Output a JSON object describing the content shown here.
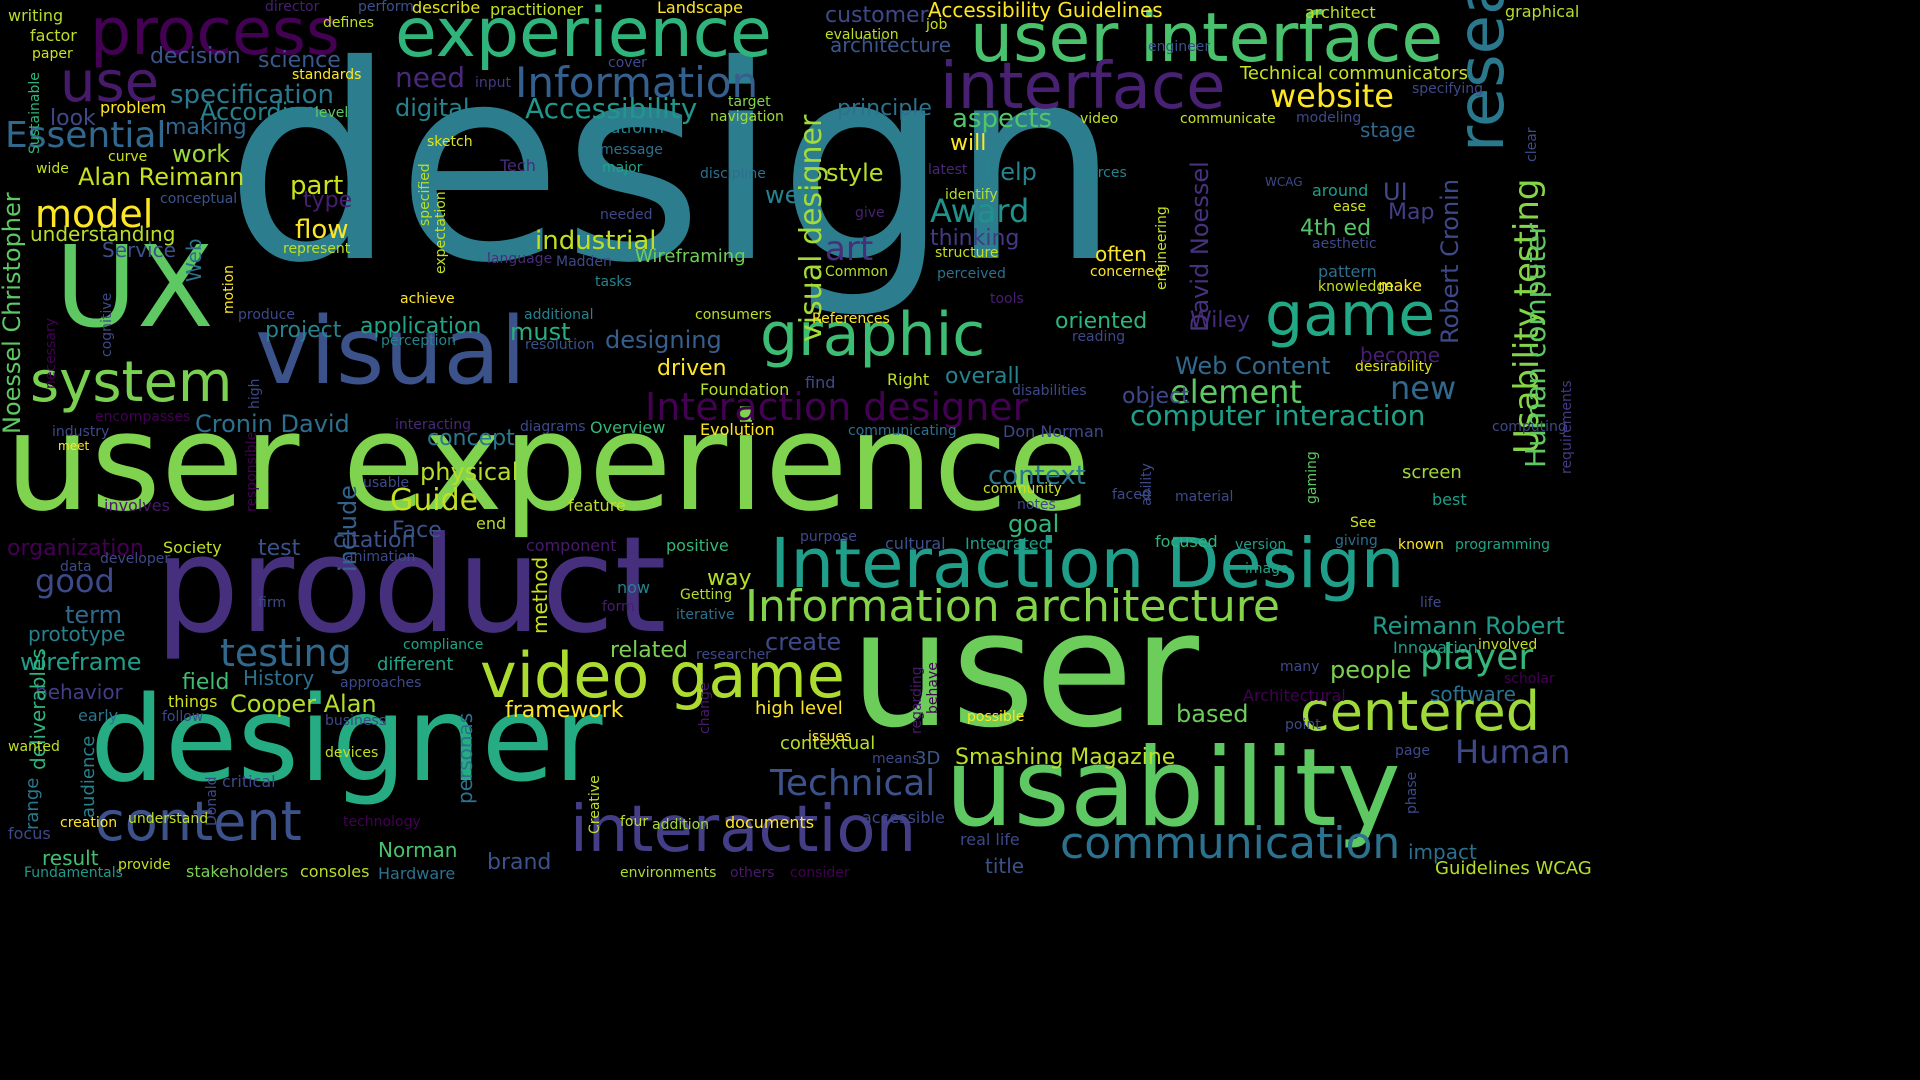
{
  "background": "#000000",
  "words": [
    {
      "text": "design",
      "color": "#2c7e8e"
    },
    {
      "text": "user experience",
      "color": "#7fd34e"
    },
    {
      "text": "user",
      "color": "#6ccd5a"
    },
    {
      "text": "product",
      "color": "#46307e"
    },
    {
      "text": "designer",
      "color": "#25ac82"
    },
    {
      "text": "usability",
      "color": "#5ec962"
    },
    {
      "text": "UX",
      "color": "#5ec962"
    },
    {
      "text": "visual",
      "color": "#3b528b"
    },
    {
      "text": "user interface",
      "color": "#4ac16d"
    },
    {
      "text": "experience",
      "color": "#2fb47c"
    },
    {
      "text": "process",
      "color": "#440154"
    },
    {
      "text": "interface",
      "color": "#482173"
    },
    {
      "text": "Interaction Design",
      "color": "#1f9e89"
    },
    {
      "text": "research",
      "color": "#2a788e"
    },
    {
      "text": "interaction",
      "color": "#433e85"
    },
    {
      "text": "system",
      "color": "#7ad151"
    },
    {
      "text": "graphic",
      "color": "#3dbc74"
    },
    {
      "text": "game",
      "color": "#22a884"
    },
    {
      "text": "video game",
      "color": "#addc30"
    },
    {
      "text": "content",
      "color": "#3b528b"
    },
    {
      "text": "Information architecture",
      "color": "#84d44b"
    },
    {
      "text": "centered",
      "color": "#9fda3a"
    },
    {
      "text": "communication",
      "color": "#2c728e"
    },
    {
      "text": "Information",
      "color": "#355f8d"
    },
    {
      "text": "use",
      "color": "#481a6c"
    },
    {
      "text": "visual designer",
      "color": "#a5db36"
    },
    {
      "text": "Usability testing",
      "color": "#86d549"
    },
    {
      "text": "model",
      "color": "#fde725"
    },
    {
      "text": "Essential",
      "color": "#31688e"
    },
    {
      "text": "testing",
      "color": "#31688e"
    },
    {
      "text": "Interaction designer",
      "color": "#440154"
    },
    {
      "text": "Technical",
      "color": "#3b528b"
    },
    {
      "text": "website",
      "color": "#fde725"
    },
    {
      "text": "Accessibility",
      "color": "#1f988b"
    },
    {
      "text": "Award",
      "color": "#21918c"
    },
    {
      "text": "element",
      "color": "#5ec962"
    },
    {
      "text": "Human",
      "color": "#3e4989"
    },
    {
      "text": "player",
      "color": "#35b779"
    },
    {
      "text": "good",
      "color": "#3e4989"
    },
    {
      "text": "Guide",
      "color": "#c2df23"
    },
    {
      "text": "art",
      "color": "#472d7b"
    },
    {
      "text": "new",
      "color": "#31688e"
    },
    {
      "text": "computer interaction",
      "color": "#1fa187"
    },
    {
      "text": "Human computer",
      "color": "#5ec962"
    },
    {
      "text": "Robert Cronin",
      "color": "#3e4989"
    },
    {
      "text": "David Noessel",
      "color": "#46327e"
    },
    {
      "text": "Noessel Christopher",
      "color": "#5ec962"
    },
    {
      "text": "Cronin David",
      "color": "#2d708e"
    },
    {
      "text": "Alan Reimann",
      "color": "#c8e020"
    },
    {
      "text": "Cooper Alan",
      "color": "#b5de2b"
    },
    {
      "text": "Reimann Robert",
      "color": "#1f9a8a"
    },
    {
      "text": "Smashing Magazine",
      "color": "#bddf26"
    },
    {
      "text": "Web Content",
      "color": "#31688e"
    },
    {
      "text": "Accessibility Guidelines",
      "color": "#fde725"
    },
    {
      "text": "Technical communicators",
      "color": "#cae11f"
    },
    {
      "text": "Guidelines WCAG",
      "color": "#b5de2b"
    },
    {
      "text": "specification",
      "color": "#2a788e"
    },
    {
      "text": "According",
      "color": "#26828e"
    },
    {
      "text": "decision",
      "color": "#3b528b"
    },
    {
      "text": "science",
      "color": "#38598c"
    },
    {
      "text": "need",
      "color": "#482878"
    },
    {
      "text": "customer",
      "color": "#3e4989"
    },
    {
      "text": "architecture",
      "color": "#39568c"
    },
    {
      "text": "digital",
      "color": "#26828e"
    },
    {
      "text": "principle",
      "color": "#2c728e"
    },
    {
      "text": "aspects",
      "color": "#52c569"
    },
    {
      "text": "will",
      "color": "#fde725"
    },
    {
      "text": "help",
      "color": "#26828e"
    },
    {
      "text": "style",
      "color": "#b8de29"
    },
    {
      "text": "well",
      "color": "#26828e"
    },
    {
      "text": "thinking",
      "color": "#443a83"
    },
    {
      "text": "oriented",
      "color": "#2fb47c"
    },
    {
      "text": "Wiley",
      "color": "#472c7a"
    },
    {
      "text": "often",
      "color": "#fde725"
    },
    {
      "text": "4th ed",
      "color": "#54c568"
    },
    {
      "text": "UI",
      "color": "#3e4989"
    },
    {
      "text": "Map",
      "color": "#433e85"
    },
    {
      "text": "part",
      "color": "#cde11d"
    },
    {
      "text": "flow",
      "color": "#fde725"
    },
    {
      "text": "type",
      "color": "#481f70"
    },
    {
      "text": "industrial",
      "color": "#c2df23"
    },
    {
      "text": "Wireframing",
      "color": "#6ece58"
    },
    {
      "text": "Web",
      "color": "#2c728e"
    },
    {
      "text": "Service",
      "color": "#3b528b"
    },
    {
      "text": "understanding",
      "color": "#bade28"
    },
    {
      "text": "work",
      "color": "#a0da39"
    },
    {
      "text": "making",
      "color": "#31688e"
    },
    {
      "text": "look",
      "color": "#3e4989"
    },
    {
      "text": "application",
      "color": "#20a386"
    },
    {
      "text": "must",
      "color": "#29af7f"
    },
    {
      "text": "designing",
      "color": "#355f8d"
    },
    {
      "text": "driven",
      "color": "#fde725"
    },
    {
      "text": "project",
      "color": "#26828e"
    },
    {
      "text": "overall",
      "color": "#26828e"
    },
    {
      "text": "object",
      "color": "#3e4989"
    },
    {
      "text": "concept",
      "color": "#2a788e"
    },
    {
      "text": "physical",
      "color": "#b5de2b"
    },
    {
      "text": "context",
      "color": "#2a788e"
    },
    {
      "text": "goal",
      "color": "#32b67a"
    },
    {
      "text": "include",
      "color": "#33628d"
    },
    {
      "text": "citation",
      "color": "#3b528b"
    },
    {
      "text": "Face",
      "color": "#3b528b"
    },
    {
      "text": "test",
      "color": "#3b528b"
    },
    {
      "text": "organization",
      "color": "#440154"
    },
    {
      "text": "prototype",
      "color": "#26828e"
    },
    {
      "text": "term",
      "color": "#31688e"
    },
    {
      "text": "wireframe",
      "color": "#1f9e89"
    },
    {
      "text": "behavior",
      "color": "#433e85"
    },
    {
      "text": "field",
      "color": "#40bd72"
    },
    {
      "text": "History",
      "color": "#2d708e"
    },
    {
      "text": "different",
      "color": "#20a386"
    },
    {
      "text": "related",
      "color": "#7ad151"
    },
    {
      "text": "framework",
      "color": "#fde725"
    },
    {
      "text": "people",
      "color": "#7ad151"
    },
    {
      "text": "based",
      "color": "#6ccd5a"
    },
    {
      "text": "software",
      "color": "#2c728e"
    },
    {
      "text": "create",
      "color": "#3e4989"
    },
    {
      "text": "way",
      "color": "#b5de2b"
    },
    {
      "text": "method",
      "color": "#cae11f"
    },
    {
      "text": "personas",
      "color": "#2c728e"
    },
    {
      "text": "deliverables",
      "color": "#2fb47c"
    },
    {
      "text": "result",
      "color": "#44bf70"
    },
    {
      "text": "brand",
      "color": "#3b528b"
    },
    {
      "text": "title",
      "color": "#3b528b"
    },
    {
      "text": "Norman",
      "color": "#4ac16d"
    },
    {
      "text": "impact",
      "color": "#2d708e"
    },
    {
      "text": "audience",
      "color": "#26828e"
    },
    {
      "text": "range",
      "color": "#2a788e"
    },
    {
      "text": "3D",
      "color": "#38598c"
    },
    {
      "text": "high level",
      "color": "#fde725"
    },
    {
      "text": "contextual",
      "color": "#b5de2b"
    },
    {
      "text": "documents",
      "color": "#fde725"
    },
    {
      "text": "Hardware",
      "color": "#2c728e"
    },
    {
      "text": "consoles",
      "color": "#b8de29"
    },
    {
      "text": "stakeholders",
      "color": "#7ad151"
    },
    {
      "text": "Fundamentals",
      "color": "#1f9a8a"
    },
    {
      "text": "environments",
      "color": "#a8db34"
    },
    {
      "text": "others",
      "color": "#481a6c"
    },
    {
      "text": "consider",
      "color": "#440154"
    },
    {
      "text": "Landscape",
      "color": "#fde725"
    },
    {
      "text": "graphical",
      "color": "#b5de2b"
    },
    {
      "text": "architect",
      "color": "#bddf26"
    },
    {
      "text": "writing",
      "color": "#b5de2b"
    },
    {
      "text": "factor",
      "color": "#c2df23"
    },
    {
      "text": "paper",
      "color": "#cde11d"
    },
    {
      "text": "Sustainable",
      "color": "#2fb47c"
    },
    {
      "text": "director",
      "color": "#481f70"
    },
    {
      "text": "defines",
      "color": "#bddf26"
    },
    {
      "text": "perform",
      "color": "#3b528b"
    },
    {
      "text": "describe",
      "color": "#e5e419"
    },
    {
      "text": "practitioner",
      "color": "#c2df23"
    },
    {
      "text": "job",
      "color": "#cae11f"
    },
    {
      "text": "evaluation",
      "color": "#bddf26"
    },
    {
      "text": "standards",
      "color": "#fde725"
    },
    {
      "text": "input",
      "color": "#443a83"
    },
    {
      "text": "cover",
      "color": "#3e4989"
    },
    {
      "text": "engineer",
      "color": "#3b528b"
    },
    {
      "text": "specifying",
      "color": "#3e4989"
    },
    {
      "text": "level",
      "color": "#5ec962"
    },
    {
      "text": "problem",
      "color": "#fde725"
    },
    {
      "text": "target",
      "color": "#86d549"
    },
    {
      "text": "navigation",
      "color": "#a0da39"
    },
    {
      "text": "video",
      "color": "#c2df23"
    },
    {
      "text": "communicate",
      "color": "#c8e020"
    },
    {
      "text": "modeling",
      "color": "#3e4989"
    },
    {
      "text": "stage",
      "color": "#31688e"
    },
    {
      "text": "clear",
      "color": "#3e4989"
    },
    {
      "text": "platform",
      "color": "#26828e"
    },
    {
      "text": "sketch",
      "color": "#e2e418"
    },
    {
      "text": "message",
      "color": "#2d708e"
    },
    {
      "text": "major",
      "color": "#20a386"
    },
    {
      "text": "Tech",
      "color": "#472c7a"
    },
    {
      "text": "discipline",
      "color": "#2d708e"
    },
    {
      "text": "latest",
      "color": "#482878"
    },
    {
      "text": "sources",
      "color": "#26828e"
    },
    {
      "text": "WCAG",
      "color": "#3e4989"
    },
    {
      "text": "around",
      "color": "#1f9e89"
    },
    {
      "text": "ease",
      "color": "#cde11d"
    },
    {
      "text": "identify",
      "color": "#b5de2b"
    },
    {
      "text": "wide",
      "color": "#c2df23"
    },
    {
      "text": "curve",
      "color": "#cde11d"
    },
    {
      "text": "conceptual",
      "color": "#3b528b"
    },
    {
      "text": "specified",
      "color": "#b5de2b"
    },
    {
      "text": "expectation",
      "color": "#c2df23"
    },
    {
      "text": "needed",
      "color": "#3e4989"
    },
    {
      "text": "give",
      "color": "#482173"
    },
    {
      "text": "language",
      "color": "#472c7a"
    },
    {
      "text": "Madden",
      "color": "#3e4989"
    },
    {
      "text": "tasks",
      "color": "#26828e"
    },
    {
      "text": "structure",
      "color": "#c2df23"
    },
    {
      "text": "Common",
      "color": "#b5de2b"
    },
    {
      "text": "perceived",
      "color": "#2d708e"
    },
    {
      "text": "concerned",
      "color": "#fde725"
    },
    {
      "text": "engineering",
      "color": "#cae11f"
    },
    {
      "text": "aesthetic",
      "color": "#3e4989"
    },
    {
      "text": "pattern",
      "color": "#2d708e"
    },
    {
      "text": "knowledge",
      "color": "#c2df23"
    },
    {
      "text": "make",
      "color": "#fde725"
    },
    {
      "text": "cognitive",
      "color": "#3e4989"
    },
    {
      "text": "represent",
      "color": "#bddf26"
    },
    {
      "text": "necessary",
      "color": "#440154"
    },
    {
      "text": "motion",
      "color": "#fde725"
    },
    {
      "text": "achieve",
      "color": "#fde725"
    },
    {
      "text": "produce",
      "color": "#3e4989"
    },
    {
      "text": "additional",
      "color": "#26828e"
    },
    {
      "text": "consumers",
      "color": "#bddf26"
    },
    {
      "text": "References",
      "color": "#fde725"
    },
    {
      "text": "tools",
      "color": "#481f70"
    },
    {
      "text": "reading",
      "color": "#3e4989"
    },
    {
      "text": "desirability",
      "color": "#e2e418"
    },
    {
      "text": "become",
      "color": "#481f70"
    },
    {
      "text": "perception",
      "color": "#26828e"
    },
    {
      "text": "resolution",
      "color": "#3b528b"
    },
    {
      "text": "Foundation",
      "color": "#b5de2b"
    },
    {
      "text": "find",
      "color": "#3e4989"
    },
    {
      "text": "Right",
      "color": "#c2df23"
    },
    {
      "text": "disabilities",
      "color": "#3e4989"
    },
    {
      "text": "high",
      "color": "#3e4989"
    },
    {
      "text": "encompasses",
      "color": "#440154"
    },
    {
      "text": "industry",
      "color": "#3e4989"
    },
    {
      "text": "meet",
      "color": "#fde725"
    },
    {
      "text": "interacting",
      "color": "#482878"
    },
    {
      "text": "diagrams",
      "color": "#3e4989"
    },
    {
      "text": "Overview",
      "color": "#35b779"
    },
    {
      "text": "Evolution",
      "color": "#fde725"
    },
    {
      "text": "communicating",
      "color": "#2d708e"
    },
    {
      "text": "Don Norman",
      "color": "#3e4989"
    },
    {
      "text": "computing",
      "color": "#3e4989"
    },
    {
      "text": "requirements",
      "color": "#443a83"
    },
    {
      "text": "usable",
      "color": "#3e4989"
    },
    {
      "text": "responsible",
      "color": "#440154"
    },
    {
      "text": "involves",
      "color": "#481a6c"
    },
    {
      "text": "feature",
      "color": "#c2df23"
    },
    {
      "text": "end",
      "color": "#b5de2b"
    },
    {
      "text": "ability",
      "color": "#3e4989"
    },
    {
      "text": "community",
      "color": "#c8e020"
    },
    {
      "text": "notes",
      "color": "#3e4989"
    },
    {
      "text": "faced",
      "color": "#3e4989"
    },
    {
      "text": "material",
      "color": "#3e4989"
    },
    {
      "text": "gaming",
      "color": "#5ec962"
    },
    {
      "text": "screen",
      "color": "#a0da39"
    },
    {
      "text": "best",
      "color": "#1f9e89"
    },
    {
      "text": "See",
      "color": "#cde11d"
    },
    {
      "text": "developer",
      "color": "#3e4989"
    },
    {
      "text": "animation",
      "color": "#3e4989"
    },
    {
      "text": "Society",
      "color": "#c2df23"
    },
    {
      "text": "component",
      "color": "#481a6c"
    },
    {
      "text": "positive",
      "color": "#35b779"
    },
    {
      "text": "purpose",
      "color": "#3e4989"
    },
    {
      "text": "cultural",
      "color": "#3b528b"
    },
    {
      "text": "Integrated",
      "color": "#1f9e89"
    },
    {
      "text": "focused",
      "color": "#2fb47c"
    },
    {
      "text": "version",
      "color": "#1f9e89"
    },
    {
      "text": "giving",
      "color": "#2d708e"
    },
    {
      "text": "known",
      "color": "#fde725"
    },
    {
      "text": "programming",
      "color": "#20a386"
    },
    {
      "text": "data",
      "color": "#3e4989"
    },
    {
      "text": "image",
      "color": "#20a386"
    },
    {
      "text": "now",
      "color": "#26828e"
    },
    {
      "text": "Getting",
      "color": "#b5de2b"
    },
    {
      "text": "firm",
      "color": "#3e4989"
    },
    {
      "text": "form",
      "color": "#481f70"
    },
    {
      "text": "iterative",
      "color": "#2d708e"
    },
    {
      "text": "life",
      "color": "#3e4989"
    },
    {
      "text": "compliance",
      "color": "#20a386"
    },
    {
      "text": "researcher",
      "color": "#3e4989"
    },
    {
      "text": "Innovation",
      "color": "#1f9e89"
    },
    {
      "text": "involved",
      "color": "#c2df23"
    },
    {
      "text": "many",
      "color": "#3e4989"
    },
    {
      "text": "scholar",
      "color": "#440154"
    },
    {
      "text": "approaches",
      "color": "#3e4989"
    },
    {
      "text": "change",
      "color": "#481a6c"
    },
    {
      "text": "regarding",
      "color": "#481a6c"
    },
    {
      "text": "behave",
      "color": "#440154"
    },
    {
      "text": "Architectural",
      "color": "#440154"
    },
    {
      "text": "point",
      "color": "#3e4989"
    },
    {
      "text": "early",
      "color": "#2a788e"
    },
    {
      "text": "follow",
      "color": "#3e4989"
    },
    {
      "text": "things",
      "color": "#cde11d"
    },
    {
      "text": "business",
      "color": "#3e4989"
    },
    {
      "text": "possible",
      "color": "#fde725"
    },
    {
      "text": "wanted",
      "color": "#c2df23"
    },
    {
      "text": "devices",
      "color": "#c2df23"
    },
    {
      "text": "issues",
      "color": "#fde725"
    },
    {
      "text": "means",
      "color": "#3e4989"
    },
    {
      "text": "page",
      "color": "#3e4989"
    },
    {
      "text": "phase",
      "color": "#3e4989"
    },
    {
      "text": "critical",
      "color": "#3e4989"
    },
    {
      "text": "Donald",
      "color": "#3e4989"
    },
    {
      "text": "Creative",
      "color": "#c2df23"
    },
    {
      "text": "accessible",
      "color": "#3e4989"
    },
    {
      "text": "understand",
      "color": "#c2df23"
    },
    {
      "text": "technology",
      "color": "#440154"
    },
    {
      "text": "four",
      "color": "#c2df23"
    },
    {
      "text": "addition",
      "color": "#a0da39"
    },
    {
      "text": "real life",
      "color": "#3e4989"
    },
    {
      "text": "focus",
      "color": "#3e4989"
    },
    {
      "text": "creation",
      "color": "#fde725"
    },
    {
      "text": "provide",
      "color": "#c2df23"
    }
  ]
}
